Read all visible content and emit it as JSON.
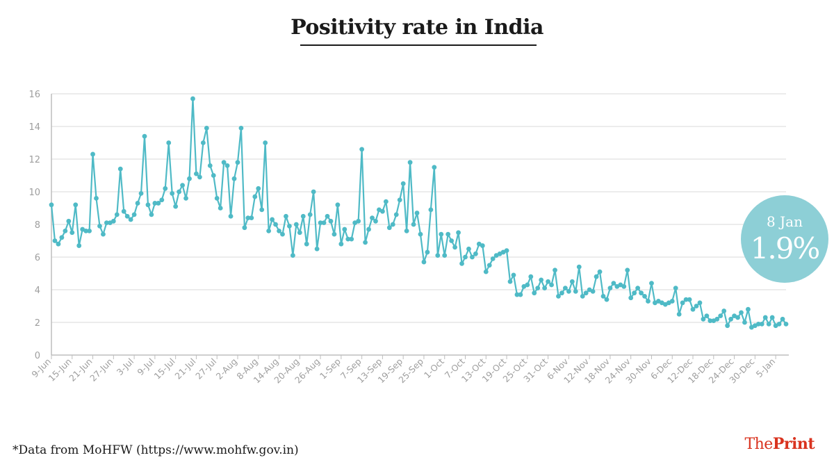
{
  "header": {
    "title": "Positivity rate in India"
  },
  "footnote": "*Data from MoHFW (https://www.mohfw.gov.in)",
  "brand": {
    "the": "The",
    "print": "Print"
  },
  "callout": {
    "date": "8 Jan",
    "value": "1.9%"
  },
  "colors": {
    "line": "#4fbac6",
    "grid": "#e6e6e6",
    "axis": "#bdbdbd",
    "tick_text": "#9e9e9e",
    "callout": "#8dcfd6",
    "brand": "#d9331f"
  },
  "chart_data": {
    "type": "line",
    "title": "Positivity rate in India",
    "xlabel": "",
    "ylabel": "",
    "ylim": [
      0,
      16
    ],
    "yticks": [
      0,
      2,
      4,
      6,
      8,
      10,
      12,
      14,
      16
    ],
    "grid": true,
    "x_start": "9-Jun",
    "x_end": "8-Jan",
    "xtick_step_days": 6,
    "xticks": [
      "9-Jun",
      "15-Jun",
      "21-Jun",
      "27-Jun",
      "3-Jul",
      "9-Jul",
      "15-Jul",
      "21-Jul",
      "27-Jul",
      "2-Aug",
      "8-Aug",
      "14-Aug",
      "20-Aug",
      "26-Aug",
      "1-Sep",
      "7-Sep",
      "13-Sep",
      "19-Sep",
      "25-Sep",
      "1-Oct",
      "7-Oct",
      "13-Oct",
      "19-Oct",
      "25-Oct",
      "31-Oct",
      "6-Nov",
      "12-Nov",
      "18-Nov",
      "24-Nov",
      "30-Nov",
      "6-Dec",
      "12-Dec",
      "18-Dec",
      "24-Dec",
      "30-Dec",
      "5-Jan"
    ],
    "series": [
      {
        "name": "Positivity rate (%)",
        "values": [
          9.2,
          7.0,
          6.8,
          7.2,
          7.6,
          8.2,
          7.5,
          9.2,
          6.7,
          7.7,
          7.6,
          7.6,
          12.3,
          9.6,
          7.9,
          7.4,
          8.1,
          8.1,
          8.2,
          8.6,
          11.4,
          8.8,
          8.5,
          8.3,
          8.6,
          9.3,
          9.9,
          13.4,
          9.2,
          8.6,
          9.3,
          9.3,
          9.5,
          10.2,
          13.0,
          9.9,
          9.1,
          10.0,
          10.4,
          9.6,
          10.8,
          15.7,
          11.1,
          10.9,
          13.0,
          13.9,
          11.6,
          11.0,
          9.6,
          9.0,
          11.8,
          11.6,
          8.5,
          10.8,
          11.8,
          13.9,
          7.8,
          8.4,
          8.4,
          9.7,
          10.2,
          8.9,
          13.0,
          7.6,
          8.3,
          8.0,
          7.6,
          7.4,
          8.5,
          7.9,
          6.1,
          8.0,
          7.5,
          8.5,
          6.8,
          8.6,
          10.0,
          6.5,
          8.1,
          8.1,
          8.5,
          8.2,
          7.4,
          9.2,
          6.8,
          7.7,
          7.1,
          7.1,
          8.1,
          8.2,
          12.6,
          6.9,
          7.7,
          8.4,
          8.2,
          8.9,
          8.8,
          9.4,
          7.8,
          8.0,
          8.6,
          9.5,
          10.5,
          7.6,
          11.8,
          8.0,
          8.7,
          7.4,
          5.7,
          6.3,
          8.9,
          11.5,
          6.1,
          7.4,
          6.1,
          7.4,
          7.0,
          6.6,
          7.5,
          5.6,
          6.0,
          6.5,
          6.0,
          6.2,
          6.8,
          6.7,
          5.1,
          5.5,
          5.9,
          6.1,
          6.2,
          6.3,
          6.4,
          4.5,
          4.9,
          3.7,
          3.7,
          4.2,
          4.3,
          4.8,
          3.8,
          4.1,
          4.6,
          4.1,
          4.5,
          4.3,
          5.2,
          3.6,
          3.8,
          4.1,
          3.9,
          4.5,
          3.9,
          5.4,
          3.6,
          3.8,
          4.0,
          3.9,
          4.8,
          5.1,
          3.6,
          3.4,
          4.1,
          4.4,
          4.2,
          4.3,
          4.2,
          5.2,
          3.5,
          3.8,
          4.1,
          3.8,
          3.6,
          3.3,
          4.4,
          3.2,
          3.3,
          3.2,
          3.1,
          3.2,
          3.3,
          4.1,
          2.5,
          3.2,
          3.4,
          3.4,
          2.8,
          3.0,
          3.2,
          2.2,
          2.4,
          2.1,
          2.1,
          2.2,
          2.4,
          2.7,
          1.8,
          2.2,
          2.4,
          2.3,
          2.6,
          2.0,
          2.8,
          1.7,
          1.8,
          1.9,
          1.9,
          2.3,
          1.9,
          2.3,
          1.8,
          1.9,
          2.2,
          1.9
        ]
      }
    ]
  }
}
